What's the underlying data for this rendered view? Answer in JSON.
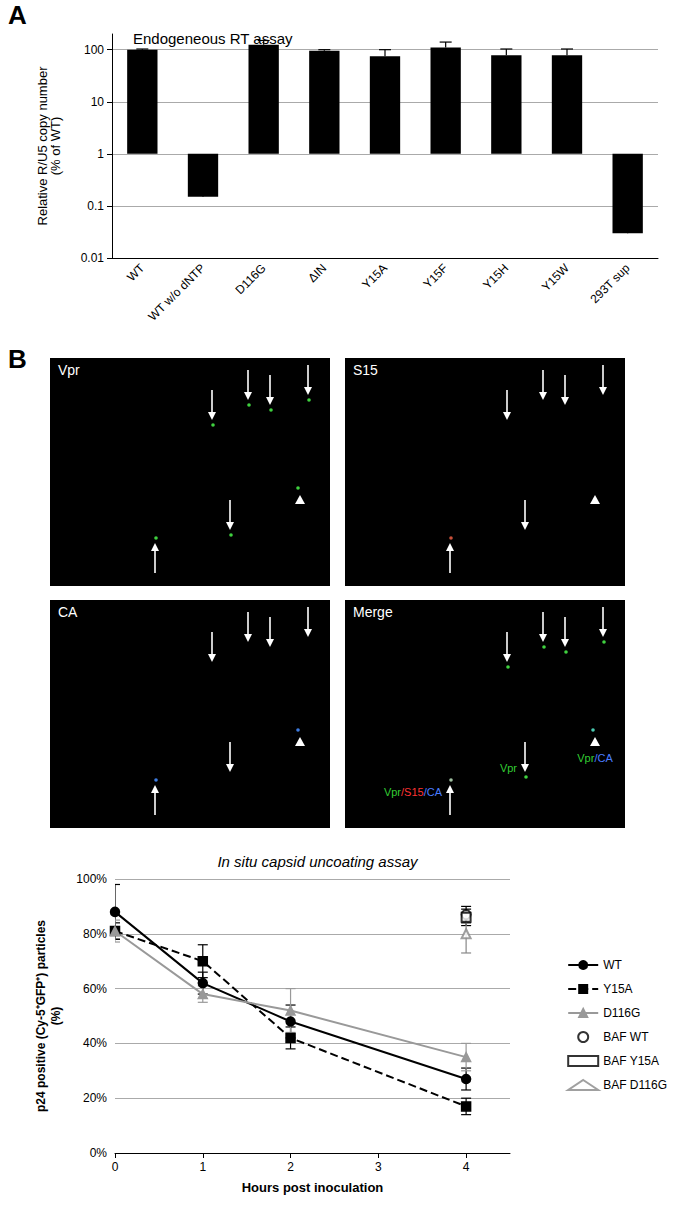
{
  "panel_labels": [
    "A",
    "B"
  ],
  "chart_data": [
    {
      "type": "bar",
      "title": "Endogeneous RT assay",
      "y_label": "Relative R/U5 copy number\n(% of WT)",
      "categories": [
        "WT",
        "WT w/o dNTP",
        "D116G",
        "ΔIN",
        "Y15A",
        "Y15F",
        "Y15H",
        "Y15W",
        "293T sup"
      ],
      "values": [
        100,
        0.15,
        125,
        95,
        75,
        110,
        78,
        78,
        0.03
      ],
      "errors": [
        3,
        0.1,
        25,
        5,
        25,
        30,
        25,
        25,
        0.01
      ],
      "color": "#000000",
      "log": "y",
      "ylim": [
        0.01,
        200
      ],
      "yticks": [
        0.01,
        0.1,
        1,
        10,
        100
      ],
      "grid": true
    },
    {
      "type": "line",
      "title": "In situ capsid uncoating assay",
      "x_label": "Hours post inoculation",
      "y_label": "p24 positive (Cy-5⁺GFP⁺) particles\n(%)",
      "x": [
        0,
        1,
        2,
        4
      ],
      "xlim": [
        0,
        4.5
      ],
      "xticks": [
        0,
        1,
        2,
        3,
        4
      ],
      "ylim": [
        0,
        100
      ],
      "yticks": [
        {
          "value": 0,
          "label": "0%"
        },
        {
          "value": 20,
          "label": "20%"
        },
        {
          "value": 40,
          "label": "40%"
        },
        {
          "value": 60,
          "label": "60%"
        },
        {
          "value": 80,
          "label": "80%"
        },
        {
          "value": 100,
          "label": "100%"
        }
      ],
      "grid": true,
      "legend": "right",
      "series": [
        {
          "name": "WT",
          "type": "line",
          "color": "#000000",
          "marker": "circle",
          "line_style": "solid",
          "values": [
            88,
            62,
            48,
            27
          ],
          "errors": [
            10,
            4,
            6,
            4
          ]
        },
        {
          "name": "Y15A",
          "type": "line",
          "color": "#000000",
          "marker": "square",
          "line_style": "dashed",
          "values": [
            81,
            70,
            42,
            17
          ],
          "errors": [
            3,
            6,
            4,
            3
          ]
        },
        {
          "name": "D116G",
          "type": "line",
          "color": "#999999",
          "marker": "triangle",
          "line_style": "solid",
          "values": [
            81,
            58,
            52,
            35
          ],
          "errors": [
            4,
            3,
            8,
            5
          ]
        },
        {
          "name": "BAF WT",
          "type": "scatter",
          "color": "#000000",
          "marker": "open_circle",
          "values": [
            null,
            null,
            null,
            87
          ],
          "errors": [
            null,
            null,
            null,
            3
          ]
        },
        {
          "name": "BAF Y15A",
          "type": "scatter",
          "color": "#000000",
          "marker": "open_square",
          "values": [
            null,
            null,
            null,
            86
          ],
          "errors": [
            null,
            null,
            null,
            3
          ]
        },
        {
          "name": "BAF D116G",
          "type": "scatter",
          "color": "#888888",
          "marker": "open_triangle",
          "values": [
            null,
            null,
            null,
            80
          ],
          "errors": [
            null,
            null,
            null,
            7
          ]
        }
      ]
    }
  ],
  "micrographs": {
    "panels": [
      {
        "title": "Vpr"
      },
      {
        "title": "S15"
      },
      {
        "title": "CA"
      },
      {
        "title": "Merge"
      }
    ],
    "annotations": [
      [
        {
          "text": "Vpr",
          "color": "#33cc33"
        }
      ],
      [
        {
          "text": "Vpr",
          "color": "#33cc33"
        },
        {
          "text": "/CA",
          "color": "#4a7dff"
        }
      ],
      [
        {
          "text": "Vpr",
          "color": "#33cc33"
        },
        {
          "text": "/S15",
          "color": "#ff3333"
        },
        {
          "text": "/CA",
          "color": "#4a7dff"
        }
      ]
    ]
  }
}
